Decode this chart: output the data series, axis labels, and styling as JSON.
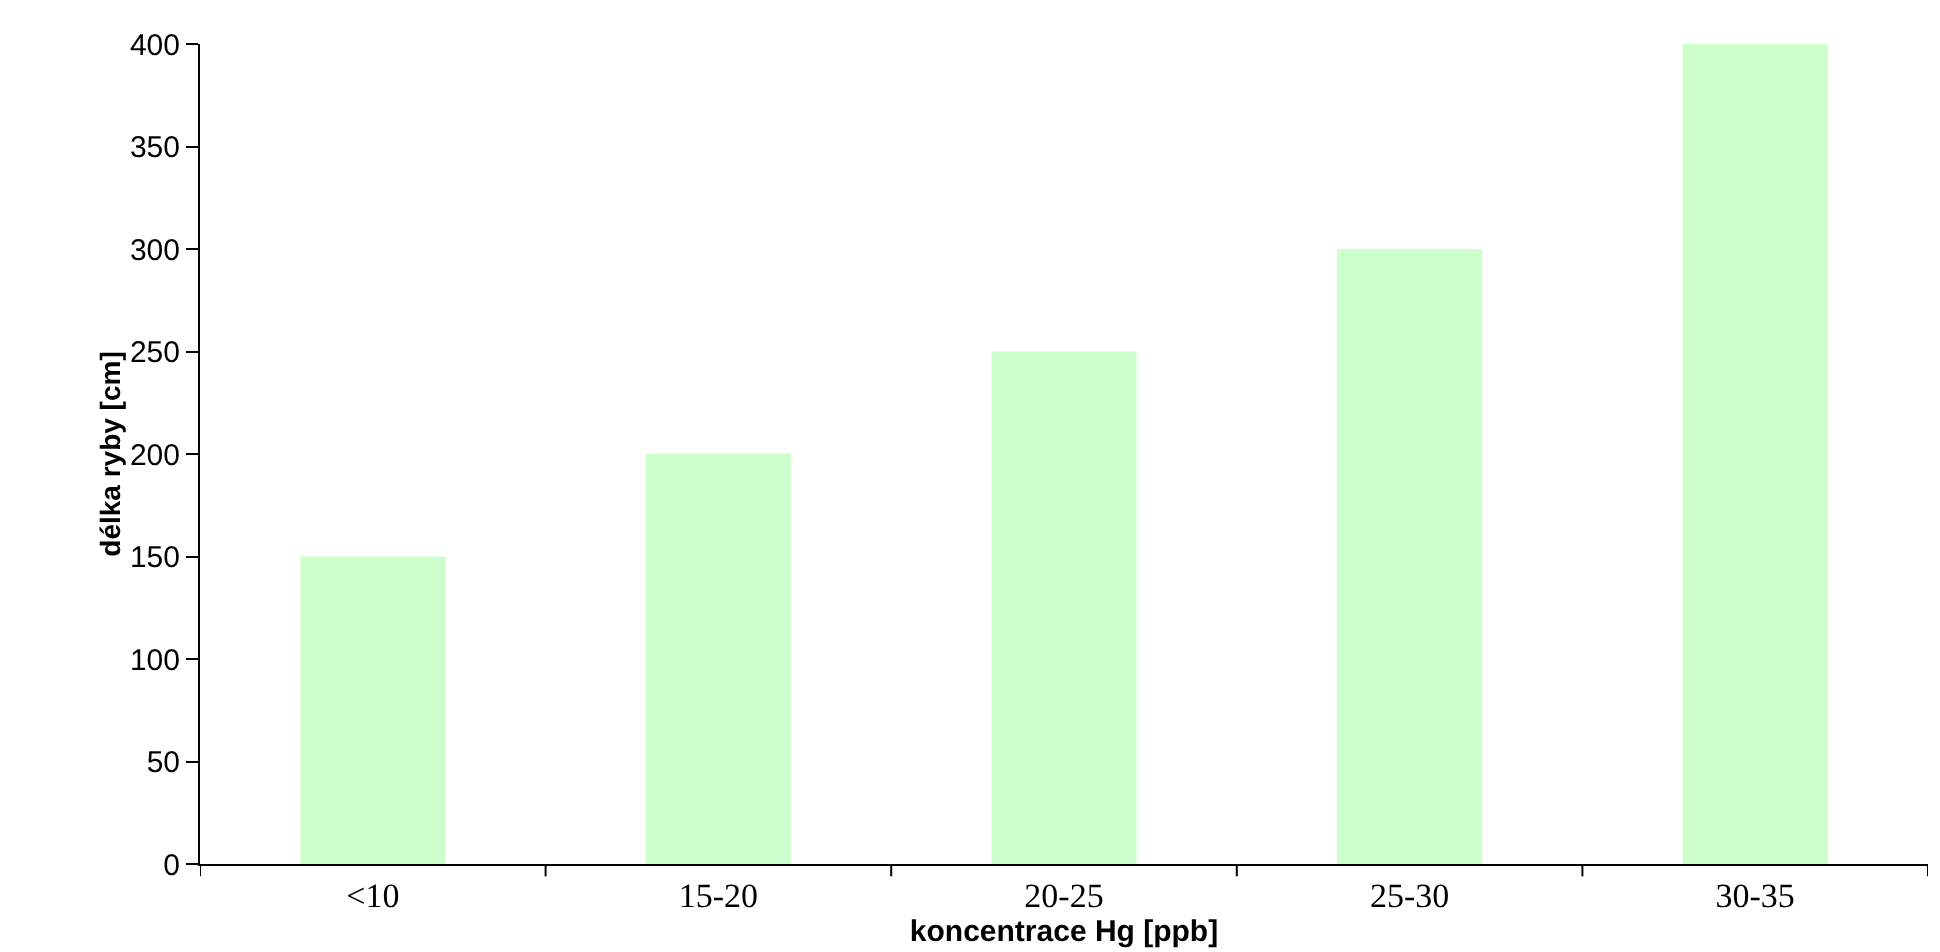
{
  "chart_data": {
    "type": "bar",
    "xlabel": "koncentrace Hg [ppb]",
    "ylabel": "délka ryby [cm]",
    "categories": [
      "<10",
      "15-20",
      "20-25",
      "25-30",
      "30-35"
    ],
    "values": [
      150,
      200,
      250,
      300,
      400
    ],
    "color": "#ccffcc",
    "ylim": [
      0,
      400
    ],
    "yticks": [
      0,
      50,
      100,
      150,
      200,
      250,
      300,
      350,
      400
    ],
    "grid": false
  }
}
